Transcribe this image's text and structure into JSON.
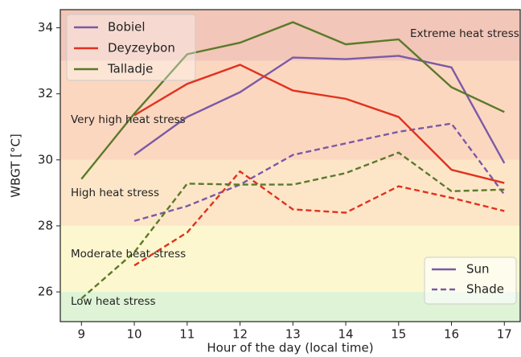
{
  "chart_data": {
    "type": "line",
    "xlabel": "Hour of the day (local time)",
    "ylabel": "WBGT [°C]",
    "x": [
      9,
      10,
      11,
      12,
      13,
      14,
      15,
      16,
      17
    ],
    "xlim": [
      8.6,
      17.3
    ],
    "xticks": [
      9,
      10,
      11,
      12,
      13,
      14,
      15,
      16,
      17
    ],
    "ylim": [
      25.1,
      34.55
    ],
    "yticks": [
      26,
      28,
      30,
      32,
      34
    ],
    "thresholds": [
      26,
      28,
      30,
      33
    ],
    "bands": [
      {
        "label": "Low heat stress",
        "color": "#dff3d6",
        "text_color": "#3a8a3a"
      },
      {
        "label": "Moderate heat stress",
        "color": "#fdf7cf",
        "text_color": "#f0a020"
      },
      {
        "label": "High heat stress",
        "color": "#fde6c8",
        "text_color": "#e2561e"
      },
      {
        "label": "Very high heat stress",
        "color": "#fcd7c0",
        "text_color": "#e03228"
      },
      {
        "label": "Extreme heat stress",
        "color": "#f2c6b8",
        "text_color": "#c42020"
      }
    ],
    "series": [
      {
        "name": "Bobiel",
        "color": "#7b5aa6",
        "values": [
          null,
          30.15,
          31.3,
          32.05,
          33.1,
          33.05,
          33.15,
          32.8,
          29.9
        ],
        "shade_values": [
          null,
          28.15,
          28.6,
          29.25,
          30.15,
          30.5,
          30.85,
          31.1,
          28.95
        ]
      },
      {
        "name": "Deyzeybon",
        "color": "#e0321e",
        "values": [
          null,
          31.35,
          32.3,
          32.88,
          32.1,
          31.85,
          31.3,
          29.7,
          29.3
        ],
        "shade_values": [
          null,
          26.8,
          27.8,
          29.65,
          28.5,
          28.4,
          29.2,
          28.85,
          28.45
        ]
      },
      {
        "name": "Talladje",
        "color": "#5a7a2a",
        "values": [
          29.42,
          31.4,
          33.2,
          33.55,
          34.17,
          33.5,
          33.65,
          32.2,
          31.45
        ],
        "shade_values": [
          25.8,
          27.2,
          29.28,
          29.25,
          29.25,
          29.6,
          30.22,
          29.05,
          29.1
        ]
      }
    ],
    "line_styles": [
      {
        "name": "Sun",
        "dash": "solid"
      },
      {
        "name": "Shade",
        "dash": "dashed"
      }
    ]
  }
}
